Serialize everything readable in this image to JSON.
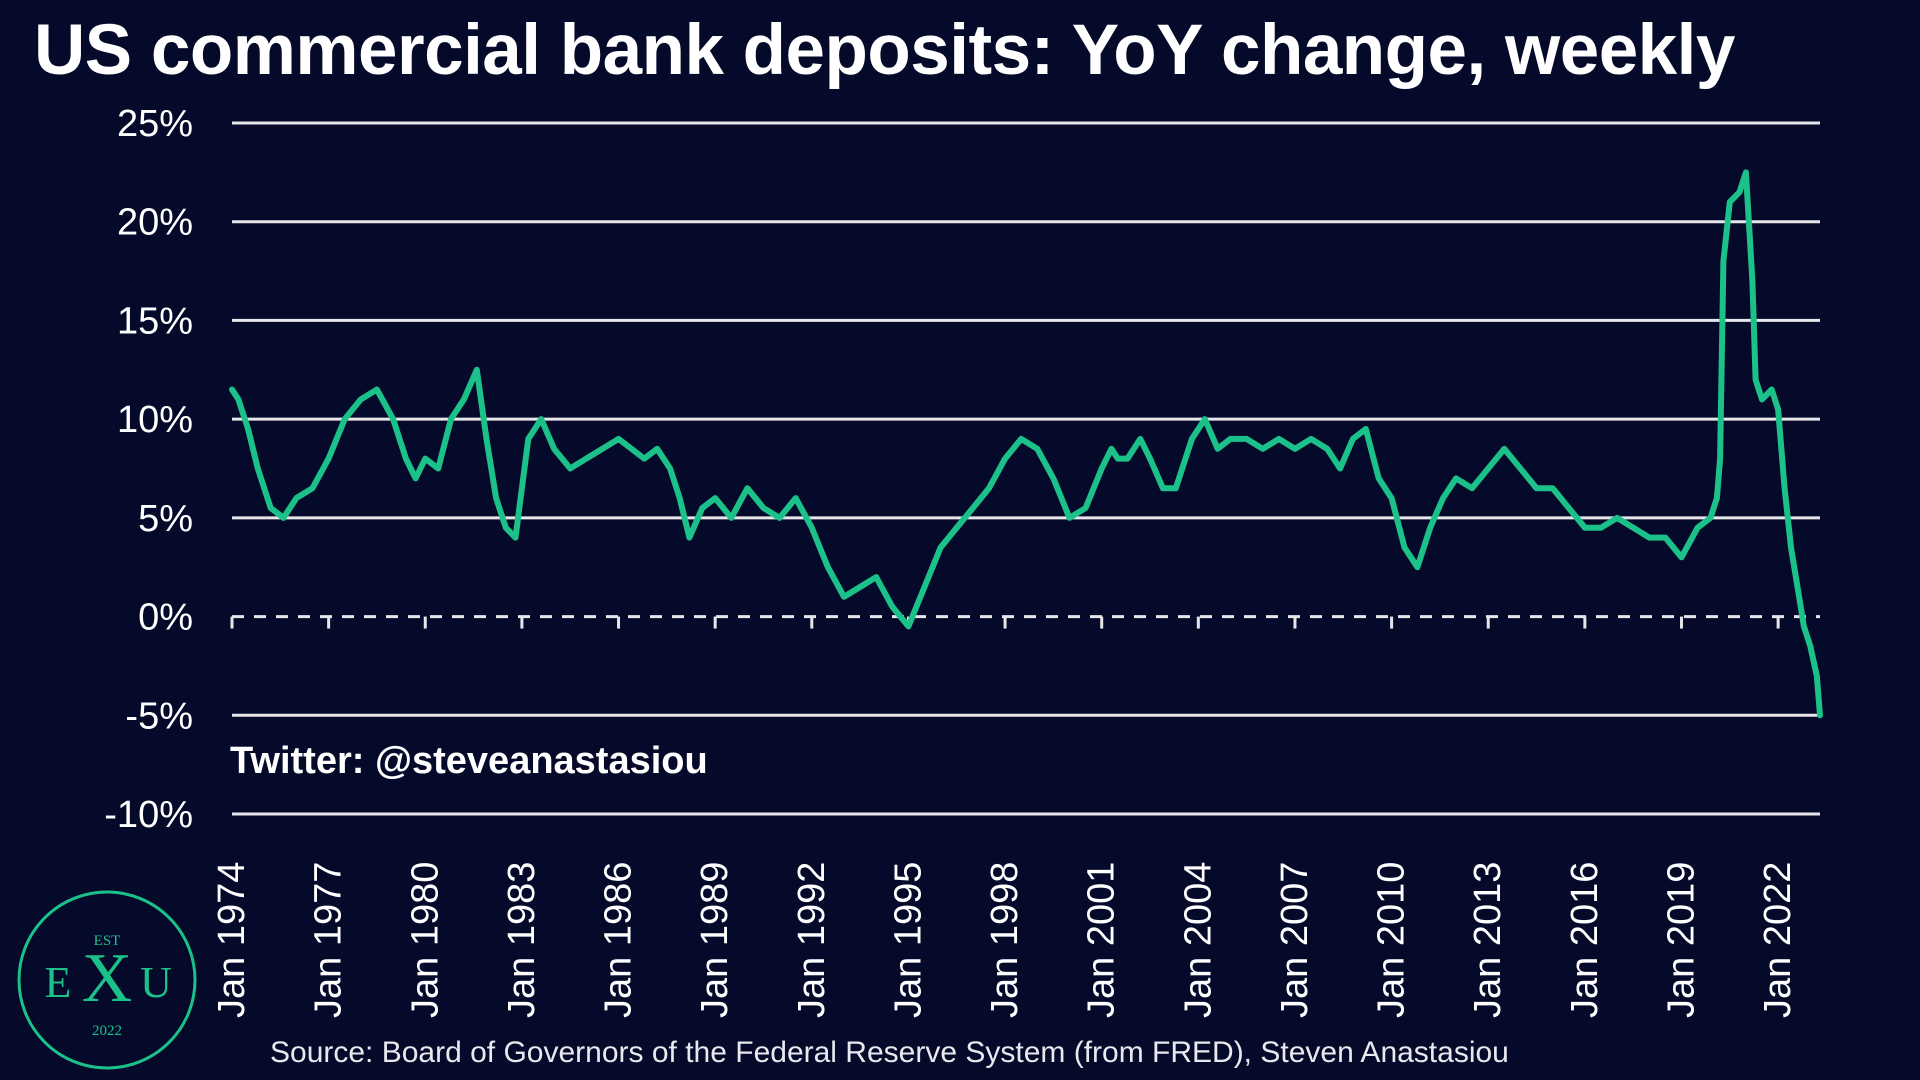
{
  "title": "US commercial bank deposits: YoY change, weekly",
  "watermark": "Twitter: @steveanastasiou",
  "source": "Source: Board of Governors of the Federal Reserve System (from FRED), Steven Anastasiou",
  "logo": {
    "top_text": "EST",
    "left_letter": "E",
    "center_letter": "X",
    "right_letter": "U",
    "bottom_text": "2022"
  },
  "colors": {
    "background": "#050a2b",
    "line": "#1cc18a",
    "grid": "#e6e6ea",
    "text": "#ffffff"
  },
  "chart_data": {
    "type": "line",
    "title": "US commercial bank deposits: YoY change, weekly",
    "y_ticks": [
      "25%",
      "20%",
      "15%",
      "10%",
      "5%",
      "0%",
      "-5%",
      "-10%"
    ],
    "x_ticks": [
      "Jan 1974",
      "Jan 1977",
      "Jan 1980",
      "Jan 1983",
      "Jan 1986",
      "Jan 1989",
      "Jan 1992",
      "Jan 1995",
      "Jan 1998",
      "Jan 2001",
      "Jan 2004",
      "Jan 2007",
      "Jan 2010",
      "Jan 2013",
      "Jan 2016",
      "Jan 2019",
      "Jan 2022"
    ],
    "ylim": [
      -10,
      25
    ],
    "xlim": [
      1974.0,
      2023.3
    ],
    "grid": true,
    "zero_line": "dashed",
    "series": [
      {
        "x": [
          1974.0,
          1974.2,
          1974.5,
          1974.8,
          1975.2,
          1975.6,
          1976.0,
          1976.5,
          1977.0,
          1977.5,
          1978.0,
          1978.5,
          1979.0,
          1979.4,
          1979.7,
          1980.0,
          1980.4,
          1980.8,
          1981.2,
          1981.6,
          1981.9,
          1982.2,
          1982.5,
          1982.8,
          1983.2,
          1983.6,
          1984.0,
          1984.5,
          1985.0,
          1985.5,
          1986.0,
          1986.4,
          1986.8,
          1987.2,
          1987.6,
          1987.9,
          1988.2,
          1988.6,
          1989.0,
          1989.5,
          1990.0,
          1990.5,
          1991.0,
          1991.5,
          1992.0,
          1992.5,
          1993.0,
          1993.5,
          1994.0,
          1994.5,
          1995.0,
          1995.5,
          1996.0,
          1996.5,
          1997.0,
          1997.5,
          1998.0,
          1998.5,
          1999.0,
          1999.5,
          2000.0,
          2000.5,
          2001.0,
          2001.3,
          2001.5,
          2001.8,
          2002.2,
          2002.5,
          2002.9,
          2003.3,
          2003.8,
          2004.2,
          2004.6,
          2005.0,
          2005.5,
          2006.0,
          2006.5,
          2007.0,
          2007.5,
          2008.0,
          2008.4,
          2008.8,
          2009.2,
          2009.6,
          2010.0,
          2010.4,
          2010.8,
          2011.2,
          2011.6,
          2012.0,
          2012.5,
          2013.0,
          2013.5,
          2014.0,
          2014.5,
          2015.0,
          2015.5,
          2016.0,
          2016.5,
          2017.0,
          2017.5,
          2018.0,
          2018.5,
          2019.0,
          2019.5,
          2019.9,
          2020.1,
          2020.2,
          2020.3,
          2020.5,
          2020.8,
          2021.0,
          2021.2,
          2021.3,
          2021.5,
          2021.8,
          2022.0,
          2022.2,
          2022.4,
          2022.6,
          2022.8,
          2023.0,
          2023.2,
          2023.3
        ],
        "values": [
          11.5,
          11.0,
          9.5,
          7.5,
          5.5,
          5.0,
          6.0,
          6.5,
          8.0,
          10.0,
          11.0,
          11.5,
          10.0,
          8.0,
          7.0,
          8.0,
          7.5,
          10.0,
          11.0,
          12.5,
          9.0,
          6.0,
          4.5,
          4.0,
          9.0,
          10.0,
          8.5,
          7.5,
          8.0,
          8.5,
          9.0,
          8.5,
          8.0,
          8.5,
          7.5,
          6.0,
          4.0,
          5.5,
          6.0,
          5.0,
          6.5,
          5.5,
          5.0,
          6.0,
          4.5,
          2.5,
          1.0,
          1.5,
          2.0,
          0.5,
          -0.5,
          1.5,
          3.5,
          4.5,
          5.5,
          6.5,
          8.0,
          9.0,
          8.5,
          7.0,
          5.0,
          5.5,
          7.5,
          8.5,
          8.0,
          8.0,
          9.0,
          8.0,
          6.5,
          6.5,
          9.0,
          10.0,
          8.5,
          9.0,
          9.0,
          8.5,
          9.0,
          8.5,
          9.0,
          8.5,
          7.5,
          9.0,
          9.5,
          7.0,
          6.0,
          3.5,
          2.5,
          4.5,
          6.0,
          7.0,
          6.5,
          7.5,
          8.5,
          7.5,
          6.5,
          6.5,
          5.5,
          4.5,
          4.5,
          5.0,
          4.5,
          4.0,
          4.0,
          3.0,
          4.5,
          5.0,
          6.0,
          8.0,
          18.0,
          21.0,
          21.5,
          22.5,
          17.0,
          12.0,
          11.0,
          11.5,
          10.5,
          6.5,
          3.5,
          1.5,
          -0.5,
          -1.5,
          -3.0,
          -5.0
        ]
      }
    ]
  }
}
